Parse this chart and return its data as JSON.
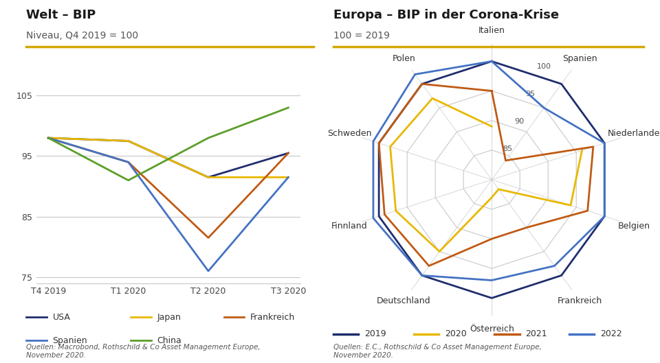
{
  "left_title": "Welt – BIP",
  "left_subtitle": "Niveau, Q4 2019 = 100",
  "left_source": "Quellen: Macrobond, Rothschild & Co Asset Management Europe,\nNovember 2020.",
  "left_xticks": [
    "T4 2019",
    "T1 2020",
    "T2 2020",
    "T3 2020"
  ],
  "left_ylim": [
    74,
    107
  ],
  "left_yticks": [
    75,
    85,
    95,
    105
  ],
  "lines": {
    "USA": {
      "color": "#1f2d6e",
      "values": [
        98.0,
        97.5,
        91.5,
        95.5
      ]
    },
    "Japan": {
      "color": "#e8b800",
      "values": [
        98.0,
        97.5,
        91.5,
        91.5
      ]
    },
    "Frankreich": {
      "color": "#c05a14",
      "values": [
        98.0,
        94.0,
        81.5,
        95.5
      ]
    },
    "Spanien": {
      "color": "#4472c4",
      "values": [
        98.0,
        94.0,
        76.0,
        91.5
      ]
    },
    "China": {
      "color": "#5a9e28",
      "values": [
        98.0,
        91.0,
        98.0,
        103.0
      ]
    }
  },
  "right_title": "Europa – BIP in der Corona-Krise",
  "right_subtitle": "100 = 2019",
  "right_source": "Quellen: E.C., Rothschild & Co Asset Management Europe,\nNovember 2020.",
  "radar_labels": [
    "Italien",
    "Spanien",
    "Niederlande",
    "Belgien",
    "Frankreich",
    "Österreich",
    "Deutschland",
    "Finnland",
    "Schweden",
    "Polen"
  ],
  "radar_rmin": 80,
  "radar_rmax": 103,
  "radar_rticks": [
    85,
    90,
    95,
    100
  ],
  "radar_series": {
    "2019": {
      "color": "#1f2d6e",
      "values": [
        100,
        100,
        100,
        100,
        100,
        100,
        100,
        100,
        100,
        100
      ]
    },
    "2020": {
      "color": "#e8b800",
      "values": [
        89,
        77,
        96,
        94,
        82,
        83,
        95,
        97,
        98,
        97
      ]
    },
    "2021": {
      "color": "#c05a14",
      "values": [
        95,
        84,
        98,
        97,
        90,
        90,
        98,
        99,
        100,
        100
      ]
    },
    "2022": {
      "color": "#4472c4",
      "values": [
        100,
        95,
        100,
        100,
        98,
        97,
        100,
        101,
        101,
        102
      ]
    }
  },
  "title_color": "#1a1a1a",
  "subtitle_color": "#555555",
  "bg_color": "#ffffff",
  "grid_color": "#c8c8c8",
  "separator_color": "#d4a800"
}
